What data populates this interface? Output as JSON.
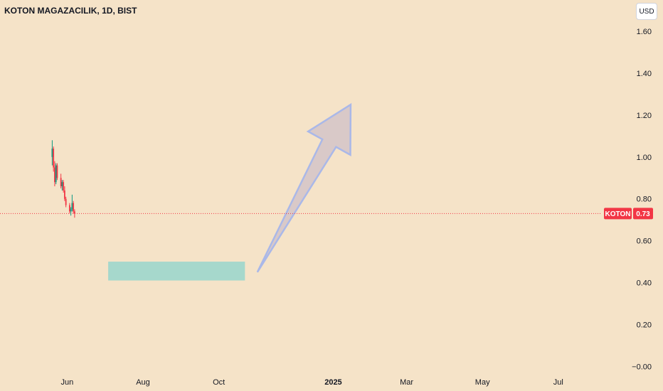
{
  "header": {
    "title": "KOTON MAGAZACILIK, 1D, BIST",
    "currency": "USD"
  },
  "price_tag": {
    "symbol": "KOTON",
    "value": "0.73",
    "color": "#f23645"
  },
  "colors": {
    "background": "#f5e3c8",
    "up": "#089981",
    "down": "#f23645",
    "box": "#a6d8cc",
    "arrow_fill": "#d4c4c8",
    "arrow_stroke": "#aab8e8"
  },
  "chart_data": {
    "type": "candlestick",
    "title": "KOTON MAGAZACILIK, 1D, BIST",
    "y_ticks": [
      "1.60",
      "1.40",
      "1.20",
      "1.00",
      "0.80",
      "0.60",
      "0.40",
      "0.20",
      "−0.00"
    ],
    "y_tick_values": [
      1.6,
      1.4,
      1.2,
      1.0,
      0.8,
      0.6,
      0.4,
      0.2,
      0.0
    ],
    "x_ticks": [
      {
        "label": "Jun",
        "date": "2024-06-01",
        "bold": false
      },
      {
        "label": "Aug",
        "date": "2024-08-01",
        "bold": false
      },
      {
        "label": "Oct",
        "date": "2024-10-01",
        "bold": false
      },
      {
        "label": "2025",
        "date": "2025-01-01",
        "bold": true
      },
      {
        "label": "Mar",
        "date": "2025-03-01",
        "bold": false
      },
      {
        "label": "May",
        "date": "2025-05-01",
        "bold": false
      },
      {
        "label": "Jul",
        "date": "2025-07-01",
        "bold": false
      }
    ],
    "ylim": [
      -0.05,
      1.75
    ],
    "xlim": [
      "2024-04-08",
      "2025-08-05"
    ],
    "last_price": 0.73,
    "candles": [
      {
        "date": "2024-05-20",
        "o": 1.0,
        "h": 1.08,
        "l": 0.96,
        "c": 1.04
      },
      {
        "date": "2024-05-21",
        "o": 1.04,
        "h": 1.05,
        "l": 0.93,
        "c": 0.95
      },
      {
        "date": "2024-05-22",
        "o": 0.95,
        "h": 0.98,
        "l": 0.86,
        "c": 0.88
      },
      {
        "date": "2024-05-23",
        "o": 0.88,
        "h": 0.97,
        "l": 0.87,
        "c": 0.96
      },
      {
        "date": "2024-05-24",
        "o": 0.96,
        "h": 0.97,
        "l": 0.89,
        "c": 0.9
      },
      {
        "date": "2024-05-27",
        "o": 0.9,
        "h": 0.92,
        "l": 0.85,
        "c": 0.86
      },
      {
        "date": "2024-05-28",
        "o": 0.86,
        "h": 0.89,
        "l": 0.84,
        "c": 0.88
      },
      {
        "date": "2024-05-29",
        "o": 0.88,
        "h": 0.89,
        "l": 0.83,
        "c": 0.84
      },
      {
        "date": "2024-05-30",
        "o": 0.84,
        "h": 0.86,
        "l": 0.79,
        "c": 0.8
      },
      {
        "date": "2024-05-31",
        "o": 0.8,
        "h": 0.81,
        "l": 0.76,
        "c": 0.77
      },
      {
        "date": "2024-06-03",
        "o": 0.77,
        "h": 0.78,
        "l": 0.73,
        "c": 0.74
      },
      {
        "date": "2024-06-04",
        "o": 0.74,
        "h": 0.76,
        "l": 0.72,
        "c": 0.75
      },
      {
        "date": "2024-06-05",
        "o": 0.75,
        "h": 0.82,
        "l": 0.74,
        "c": 0.78
      },
      {
        "date": "2024-06-06",
        "o": 0.78,
        "h": 0.79,
        "l": 0.73,
        "c": 0.74
      },
      {
        "date": "2024-06-07",
        "o": 0.74,
        "h": 0.75,
        "l": 0.71,
        "c": 0.73
      }
    ],
    "box": {
      "date_start": "2024-07-04",
      "date_end": "2024-10-22",
      "y_low": 0.41,
      "y_high": 0.5
    },
    "arrow": {
      "from": {
        "date": "2024-11-01",
        "y": 0.45
      },
      "to": {
        "date": "2025-01-15",
        "y": 1.25
      }
    }
  }
}
